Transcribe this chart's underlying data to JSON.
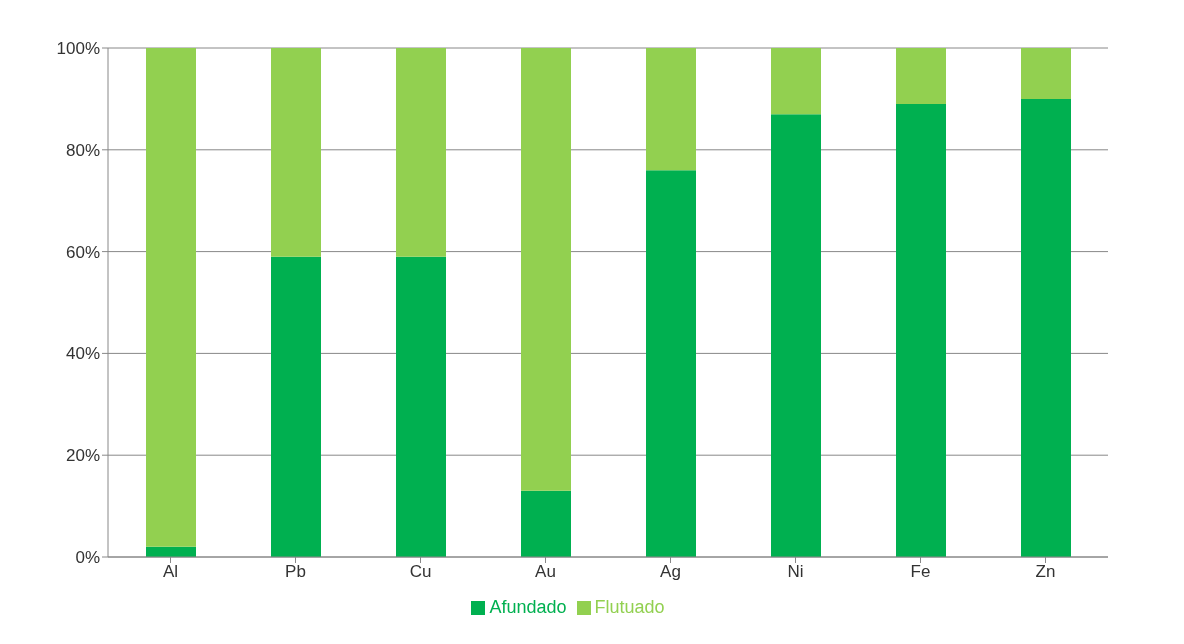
{
  "chart_data": {
    "type": "bar",
    "stacked": true,
    "categories": [
      "Al",
      "Pb",
      "Cu",
      "Au",
      "Ag",
      "Ni",
      "Fe",
      "Zn"
    ],
    "series": [
      {
        "name": "Afundado",
        "color": "#00b050",
        "values": [
          2,
          59,
          59,
          13,
          76,
          87,
          89,
          90
        ]
      },
      {
        "name": "Flutuado",
        "color": "#92d050",
        "values": [
          98,
          41,
          41,
          87,
          24,
          13,
          11,
          10
        ]
      }
    ],
    "ylim": [
      0,
      100
    ],
    "yticks": [
      {
        "value": 0,
        "label": "0%"
      },
      {
        "value": 20,
        "label": "20%"
      },
      {
        "value": 40,
        "label": "40%"
      },
      {
        "value": 60,
        "label": "60%"
      },
      {
        "value": 80,
        "label": "80%"
      },
      {
        "value": 100,
        "label": "100%"
      }
    ],
    "grid": "y",
    "legend": "bottom"
  }
}
